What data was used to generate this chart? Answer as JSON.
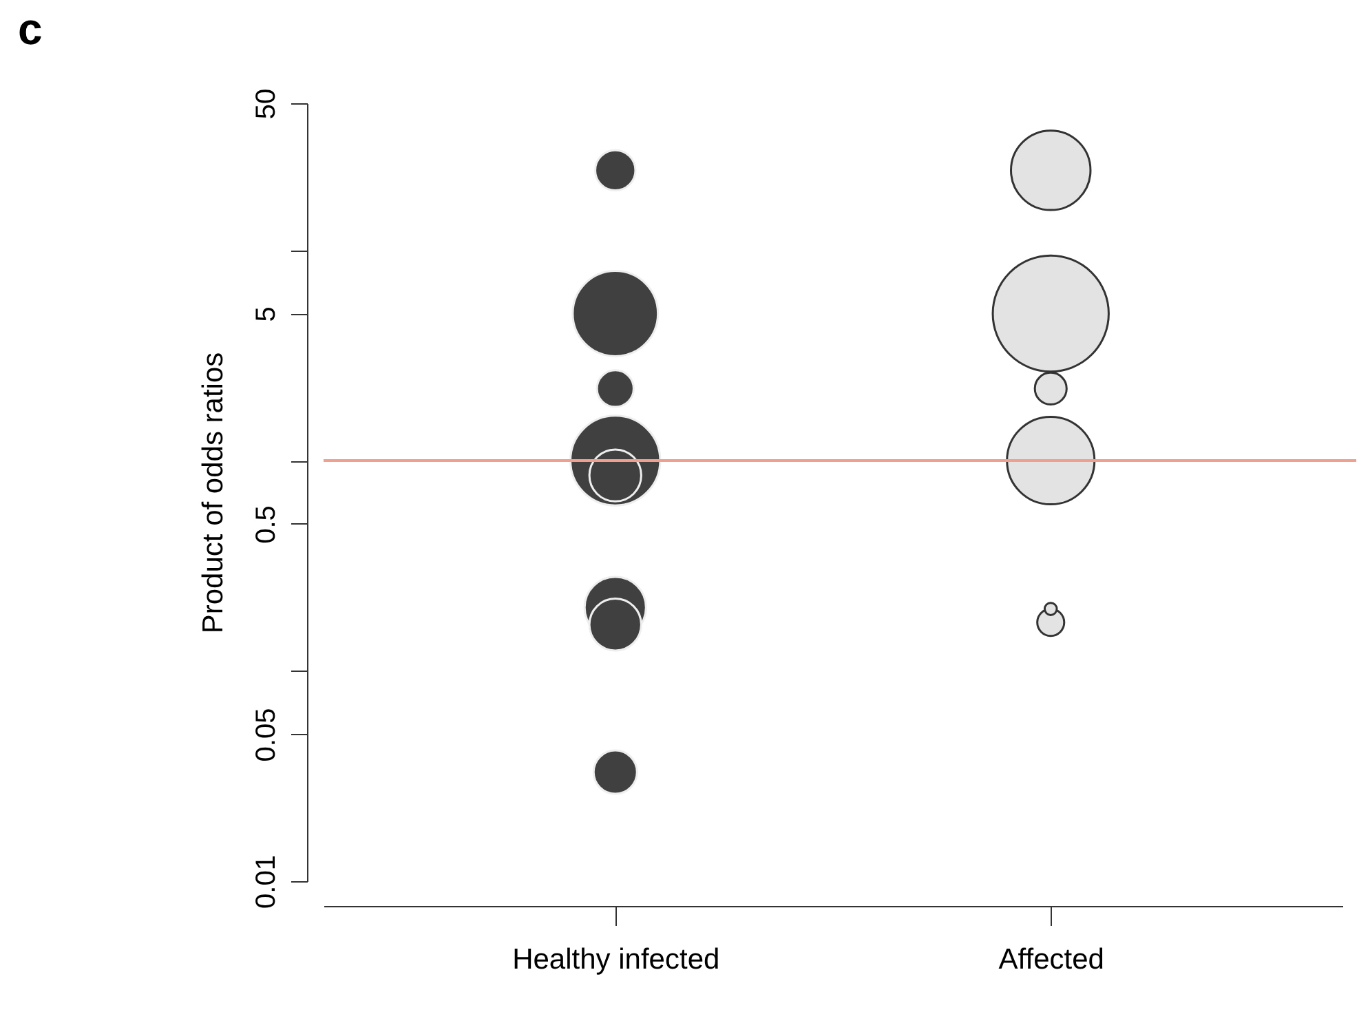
{
  "chart_data": {
    "type": "bubble",
    "title": "c",
    "ylabel": "Product of odds ratios",
    "categories": [
      "Healthy infected",
      "Affected"
    ],
    "series": [
      {
        "color": "#404040",
        "x": [
          "Healthy infected",
          "Healthy infected",
          "Healthy infected",
          "Healthy infected",
          "Healthy infected",
          "Healthy infected",
          "Healthy infected",
          "Healthy infected"
        ],
        "values": [
          24,
          5,
          2.2,
          1,
          0.85,
          0.2,
          0.166,
          0.033
        ],
        "sizes": [
          0.12,
          0.54,
          0.1,
          0.6,
          0.2,
          0.28,
          0.2,
          0.14
        ]
      },
      {
        "color": "#e3e3e3",
        "x": [
          "Affected",
          "Affected",
          "Affected",
          "Affected",
          "Affected",
          "Affected"
        ],
        "values": [
          24,
          5,
          2.2,
          1,
          0.17,
          0.197
        ],
        "sizes": [
          0.47,
          1,
          0.075,
          0.57,
          0.054,
          0.011
        ]
      }
    ],
    "log": "y",
    "ylim": [
      0.01,
      50
    ],
    "yticks": [
      0.01,
      0.05,
      {
        "value": 0.1,
        "label": null
      },
      0.5,
      {
        "value": 1,
        "label": null
      },
      5,
      {
        "value": 10,
        "label": null
      },
      50
    ],
    "ref_lines": [
      {
        "axis": "y",
        "value": 1,
        "color": "#f0a090"
      }
    ],
    "grid": false
  }
}
